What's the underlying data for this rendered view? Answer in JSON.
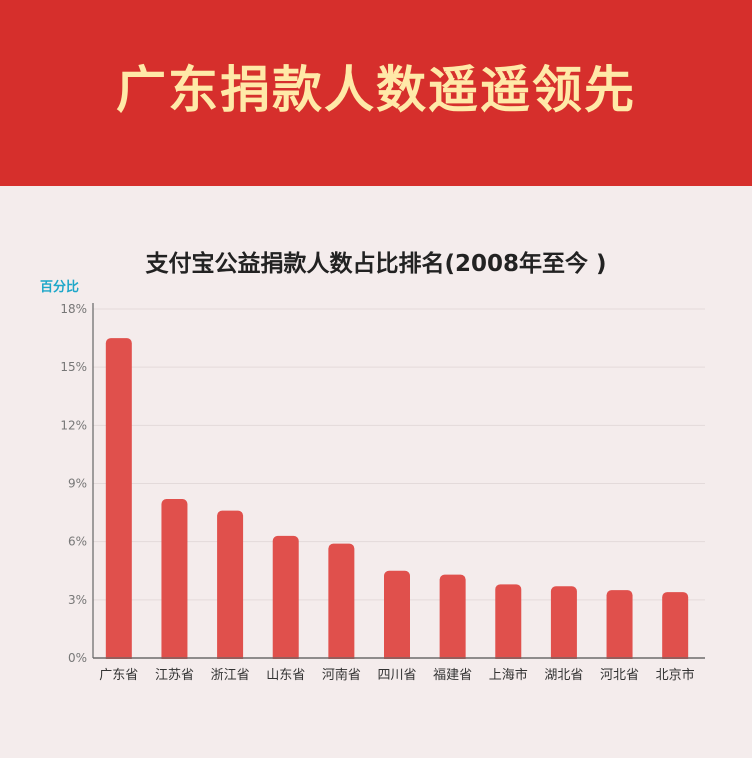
{
  "banner": {
    "title": "广东捐款人数遥遥领先"
  },
  "chart_data": {
    "type": "bar",
    "title": "支付宝公益捐款人数占比排名(2008年至今 )",
    "ylabel": "百分比",
    "xlabel": "",
    "categories": [
      "广东省",
      "江苏省",
      "浙江省",
      "山东省",
      "河南省",
      "四川省",
      "福建省",
      "上海市",
      "湖北省",
      "河北省",
      "北京市"
    ],
    "values": [
      16.5,
      8.2,
      7.6,
      6.3,
      5.9,
      4.5,
      4.3,
      3.8,
      3.7,
      3.5,
      3.4
    ],
    "ylim": [
      0,
      18
    ],
    "yticks": [
      0,
      3,
      6,
      9,
      12,
      15,
      18
    ],
    "ytick_suffix": "%",
    "grid": true,
    "bar_color": "#e0504c"
  }
}
